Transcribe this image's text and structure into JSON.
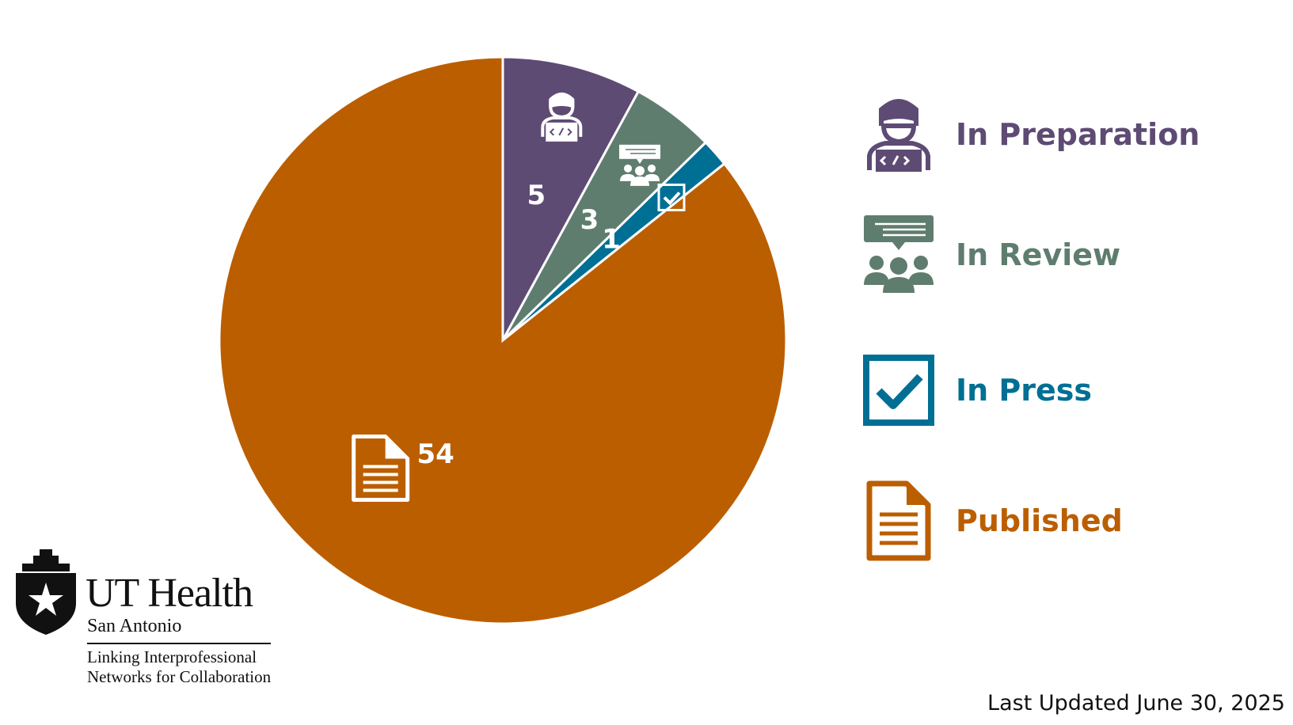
{
  "chart_data": {
    "type": "pie",
    "slices": [
      {
        "label": "In Preparation",
        "value": 5,
        "color": "#5e4b74",
        "icon": "person-laptop-icon"
      },
      {
        "label": "In Review",
        "value": 3,
        "color": "#5f7d6f",
        "icon": "group-discussion-icon"
      },
      {
        "label": "In Press",
        "value": 1,
        "color": "#006f94",
        "icon": "checkbox-icon"
      },
      {
        "label": "Published",
        "value": 54,
        "color": "#bb5e00",
        "icon": "document-icon"
      }
    ],
    "legend_position": "right"
  },
  "footer": {
    "updated": "Last Updated June 30, 2025"
  },
  "logo": {
    "name": "UT Health",
    "campus": "San Antonio",
    "tagline_1": "Linking Interprofessional",
    "tagline_2": "Networks for Collaboration"
  }
}
